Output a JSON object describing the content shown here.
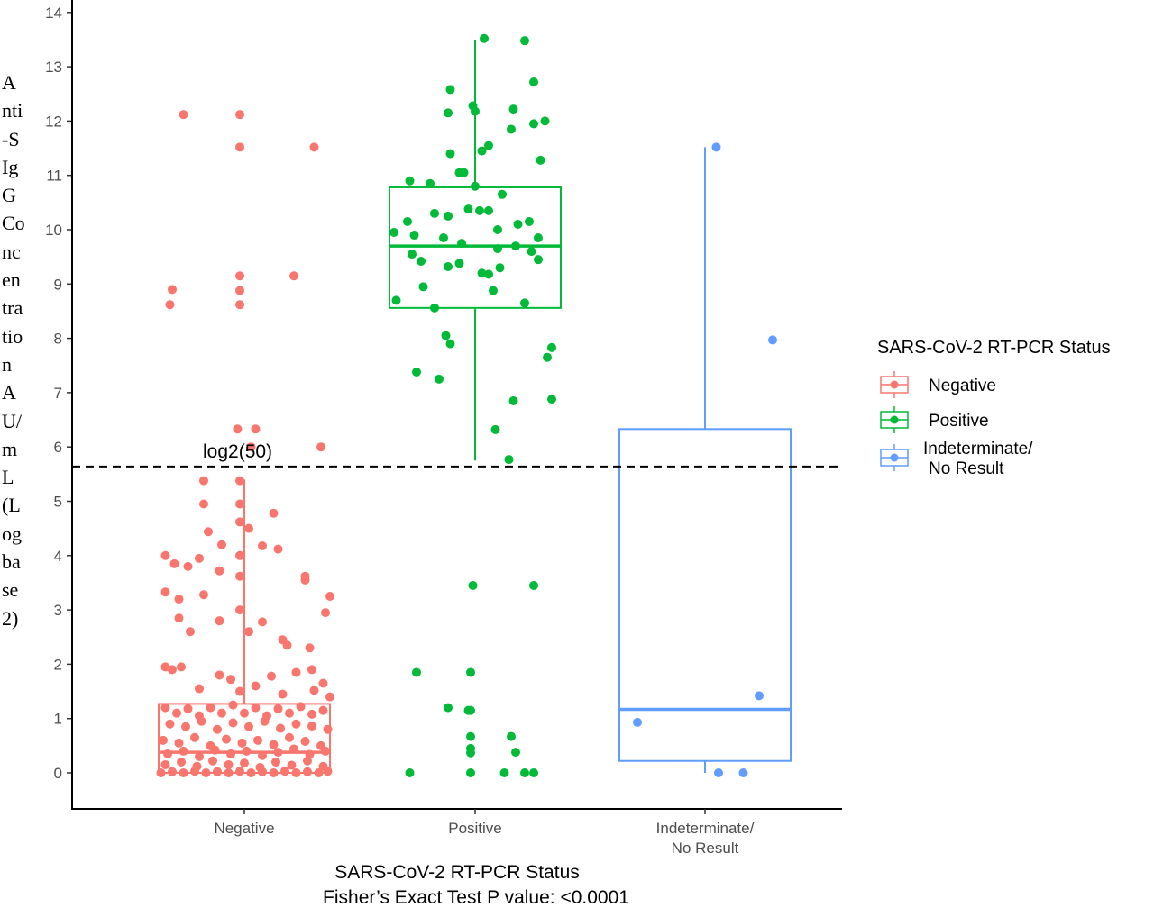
{
  "chart_data": {
    "type": "boxplot-jitter",
    "title": "",
    "xlabel": "SARS-CoV-2 RT-PCR Status",
    "ylabel": "Anti-S IgG Concentration AU/mL (Log base 2)",
    "ylabel_lines": [
      "A",
      "nti",
      "-S",
      "Ig",
      "G",
      "Co",
      "nc",
      "en",
      "tra",
      "tio",
      "n",
      "A",
      "U/",
      "m",
      "L",
      "(L",
      "og",
      "ba",
      "se",
      "2)"
    ],
    "footnote": "Fisher’s Exact Test P value: <0.0001",
    "ylim": [
      -0.6,
      14.2
    ],
    "yticks": [
      0,
      1,
      2,
      3,
      4,
      5,
      6,
      7,
      8,
      9,
      10,
      11,
      12,
      13,
      14
    ],
    "reference_line": {
      "y": 5.64,
      "label": "log2(50)"
    },
    "legend": {
      "title": "SARS-CoV-2 RT-PCR Status",
      "placement": "right"
    },
    "categories": [
      "Negative",
      "Positive",
      "Indeterminate/\nNo Result"
    ],
    "series": [
      {
        "name": "Negative",
        "color": "#F8766D",
        "box": {
          "min": 0,
          "q1": 0,
          "median": 0.38,
          "q3": 1.27,
          "max": 5.4
        },
        "points": [
          [
            -0.27,
            12.12
          ],
          [
            -0.02,
            12.12
          ],
          [
            -0.02,
            11.52
          ],
          [
            0.31,
            11.52
          ],
          [
            -0.33,
            8.62
          ],
          [
            -0.32,
            8.9
          ],
          [
            -0.02,
            9.15
          ],
          [
            -0.02,
            8.88
          ],
          [
            -0.02,
            8.62
          ],
          [
            0.22,
            9.15
          ],
          [
            -0.03,
            6.33
          ],
          [
            0.05,
            6.33
          ],
          [
            0.34,
            6.0
          ],
          [
            0.03,
            6.0
          ],
          [
            -0.18,
            5.38
          ],
          [
            -0.02,
            5.38
          ],
          [
            -0.18,
            4.95
          ],
          [
            -0.02,
            4.95
          ],
          [
            0.13,
            4.78
          ],
          [
            -0.02,
            4.62
          ],
          [
            0.02,
            4.5
          ],
          [
            -0.16,
            4.44
          ],
          [
            -0.1,
            4.2
          ],
          [
            0.08,
            4.18
          ],
          [
            0.15,
            4.12
          ],
          [
            -0.02,
            4.0
          ],
          [
            -0.35,
            4.0
          ],
          [
            -0.31,
            3.85
          ],
          [
            -0.25,
            3.8
          ],
          [
            -0.2,
            3.95
          ],
          [
            -0.02,
            3.62
          ],
          [
            -0.11,
            3.72
          ],
          [
            0.27,
            3.62
          ],
          [
            0.27,
            3.55
          ],
          [
            -0.35,
            3.33
          ],
          [
            -0.29,
            3.2
          ],
          [
            -0.18,
            3.28
          ],
          [
            0.38,
            3.25
          ],
          [
            -0.02,
            3.0
          ],
          [
            0.36,
            2.95
          ],
          [
            -0.29,
            2.85
          ],
          [
            -0.11,
            2.8
          ],
          [
            0.08,
            2.78
          ],
          [
            -0.24,
            2.6
          ],
          [
            0.02,
            2.6
          ],
          [
            0.17,
            2.45
          ],
          [
            0.19,
            2.35
          ],
          [
            0.29,
            2.3
          ],
          [
            -0.35,
            1.95
          ],
          [
            -0.32,
            1.9
          ],
          [
            -0.28,
            1.95
          ],
          [
            -0.11,
            1.8
          ],
          [
            0.12,
            1.78
          ],
          [
            0.23,
            1.85
          ],
          [
            0.3,
            1.9
          ],
          [
            0.35,
            1.65
          ],
          [
            -0.2,
            1.55
          ],
          [
            -0.06,
            1.72
          ],
          [
            0.05,
            1.6
          ],
          [
            0.17,
            1.45
          ],
          [
            0.31,
            1.52
          ],
          [
            -0.02,
            1.5
          ],
          [
            0.38,
            1.4
          ],
          [
            -0.35,
            1.2
          ],
          [
            -0.3,
            1.1
          ],
          [
            -0.25,
            1.18
          ],
          [
            -0.2,
            1.05
          ],
          [
            -0.15,
            1.2
          ],
          [
            -0.1,
            1.1
          ],
          [
            -0.05,
            1.25
          ],
          [
            0.0,
            1.1
          ],
          [
            0.05,
            1.2
          ],
          [
            0.1,
            1.05
          ],
          [
            0.15,
            1.18
          ],
          [
            0.2,
            1.1
          ],
          [
            0.25,
            1.22
          ],
          [
            0.3,
            1.08
          ],
          [
            0.35,
            1.15
          ],
          [
            -0.33,
            0.9
          ],
          [
            -0.26,
            0.85
          ],
          [
            -0.19,
            0.95
          ],
          [
            -0.12,
            0.8
          ],
          [
            -0.05,
            0.92
          ],
          [
            0.02,
            0.85
          ],
          [
            0.09,
            0.95
          ],
          [
            0.16,
            0.82
          ],
          [
            0.23,
            0.9
          ],
          [
            0.3,
            0.86
          ],
          [
            0.37,
            0.8
          ],
          [
            -0.36,
            0.6
          ],
          [
            -0.29,
            0.55
          ],
          [
            -0.22,
            0.65
          ],
          [
            -0.15,
            0.5
          ],
          [
            -0.08,
            0.62
          ],
          [
            -0.01,
            0.55
          ],
          [
            0.06,
            0.6
          ],
          [
            0.13,
            0.52
          ],
          [
            0.2,
            0.65
          ],
          [
            0.27,
            0.58
          ],
          [
            0.34,
            0.5
          ],
          [
            -0.34,
            0.35
          ],
          [
            -0.27,
            0.4
          ],
          [
            -0.2,
            0.3
          ],
          [
            -0.13,
            0.42
          ],
          [
            -0.06,
            0.35
          ],
          [
            0.01,
            0.4
          ],
          [
            0.08,
            0.32
          ],
          [
            0.15,
            0.38
          ],
          [
            0.22,
            0.44
          ],
          [
            0.29,
            0.34
          ],
          [
            0.36,
            0.4
          ],
          [
            -0.35,
            0.15
          ],
          [
            -0.28,
            0.2
          ],
          [
            -0.21,
            0.12
          ],
          [
            -0.14,
            0.22
          ],
          [
            -0.07,
            0.15
          ],
          [
            0.0,
            0.18
          ],
          [
            0.07,
            0.1
          ],
          [
            0.14,
            0.2
          ],
          [
            0.21,
            0.14
          ],
          [
            0.28,
            0.22
          ],
          [
            0.35,
            0.12
          ],
          [
            -0.37,
            0.0
          ],
          [
            -0.32,
            0.02
          ],
          [
            -0.27,
            0.0
          ],
          [
            -0.22,
            0.03
          ],
          [
            -0.17,
            0.0
          ],
          [
            -0.12,
            0.02
          ],
          [
            -0.07,
            0.0
          ],
          [
            -0.02,
            0.03
          ],
          [
            0.03,
            0.0
          ],
          [
            0.08,
            0.02
          ],
          [
            0.13,
            0.0
          ],
          [
            0.18,
            0.03
          ],
          [
            0.23,
            0.0
          ],
          [
            0.28,
            0.02
          ],
          [
            0.33,
            0.0
          ],
          [
            0.37,
            0.03
          ]
        ]
      },
      {
        "name": "Positive",
        "color": "#00BA38",
        "box": {
          "min": 5.75,
          "q1": 8.56,
          "median": 9.7,
          "q3": 10.78,
          "max": 13.5
        },
        "points": [
          [
            0.04,
            13.52
          ],
          [
            0.22,
            13.48
          ],
          [
            0.26,
            12.72
          ],
          [
            -0.11,
            12.58
          ],
          [
            -0.12,
            12.15
          ],
          [
            -0.01,
            12.28
          ],
          [
            0.0,
            12.18
          ],
          [
            0.17,
            12.22
          ],
          [
            0.26,
            11.95
          ],
          [
            0.31,
            12.0
          ],
          [
            0.16,
            11.85
          ],
          [
            0.06,
            11.55
          ],
          [
            0.03,
            11.45
          ],
          [
            -0.11,
            11.4
          ],
          [
            0.29,
            11.28
          ],
          [
            -0.07,
            11.05
          ],
          [
            -0.05,
            11.05
          ],
          [
            -0.29,
            10.9
          ],
          [
            -0.2,
            10.85
          ],
          [
            0.0,
            10.8
          ],
          [
            0.12,
            10.65
          ],
          [
            -0.03,
            10.38
          ],
          [
            0.02,
            10.35
          ],
          [
            -0.12,
            10.25
          ],
          [
            -0.3,
            10.15
          ],
          [
            -0.18,
            10.3
          ],
          [
            0.06,
            10.35
          ],
          [
            0.24,
            10.15
          ],
          [
            0.19,
            10.1
          ],
          [
            0.1,
            10.0
          ],
          [
            -0.27,
            9.9
          ],
          [
            -0.14,
            9.85
          ],
          [
            0.28,
            9.85
          ],
          [
            -0.36,
            9.95
          ],
          [
            -0.06,
            9.75
          ],
          [
            0.18,
            9.7
          ],
          [
            -0.28,
            9.55
          ],
          [
            0.1,
            9.65
          ],
          [
            0.25,
            9.6
          ],
          [
            -0.24,
            9.42
          ],
          [
            -0.12,
            9.32
          ],
          [
            -0.07,
            9.38
          ],
          [
            0.03,
            9.2
          ],
          [
            0.06,
            9.18
          ],
          [
            0.11,
            9.3
          ],
          [
            0.28,
            9.45
          ],
          [
            -0.23,
            8.95
          ],
          [
            0.08,
            8.88
          ],
          [
            0.22,
            8.65
          ],
          [
            -0.18,
            8.56
          ],
          [
            -0.35,
            8.7
          ],
          [
            -0.13,
            8.05
          ],
          [
            -0.11,
            7.9
          ],
          [
            0.34,
            7.83
          ],
          [
            0.32,
            7.65
          ],
          [
            -0.26,
            7.38
          ],
          [
            -0.16,
            7.25
          ],
          [
            0.17,
            6.85
          ],
          [
            0.34,
            6.88
          ],
          [
            0.09,
            6.32
          ],
          [
            0.15,
            5.77
          ],
          [
            -0.01,
            3.45
          ],
          [
            0.26,
            3.45
          ],
          [
            -0.26,
            1.85
          ],
          [
            -0.02,
            1.85
          ],
          [
            -0.12,
            1.2
          ],
          [
            -0.02,
            1.15
          ],
          [
            -0.03,
            1.15
          ],
          [
            0.16,
            0.67
          ],
          [
            -0.02,
            0.67
          ],
          [
            -0.02,
            0.45
          ],
          [
            -0.02,
            0.37
          ],
          [
            0.18,
            0.38
          ],
          [
            -0.29,
            0.0
          ],
          [
            -0.02,
            0.0
          ],
          [
            0.13,
            0.0
          ],
          [
            0.22,
            0.0
          ],
          [
            0.26,
            0.0
          ]
        ]
      },
      {
        "name": "Indeterminate/\nNo Result",
        "legend_lines": [
          "Indeterminate/",
          "No Result"
        ],
        "color": "#619CFF",
        "box": {
          "min": 0,
          "q1": 0.22,
          "median": 1.17,
          "q3": 6.33,
          "max": 11.52
        },
        "points": [
          [
            0.05,
            11.52
          ],
          [
            0.3,
            7.97
          ],
          [
            0.24,
            1.42
          ],
          [
            -0.3,
            0.93
          ],
          [
            0.06,
            0.0
          ],
          [
            0.17,
            0.0
          ]
        ]
      }
    ]
  }
}
